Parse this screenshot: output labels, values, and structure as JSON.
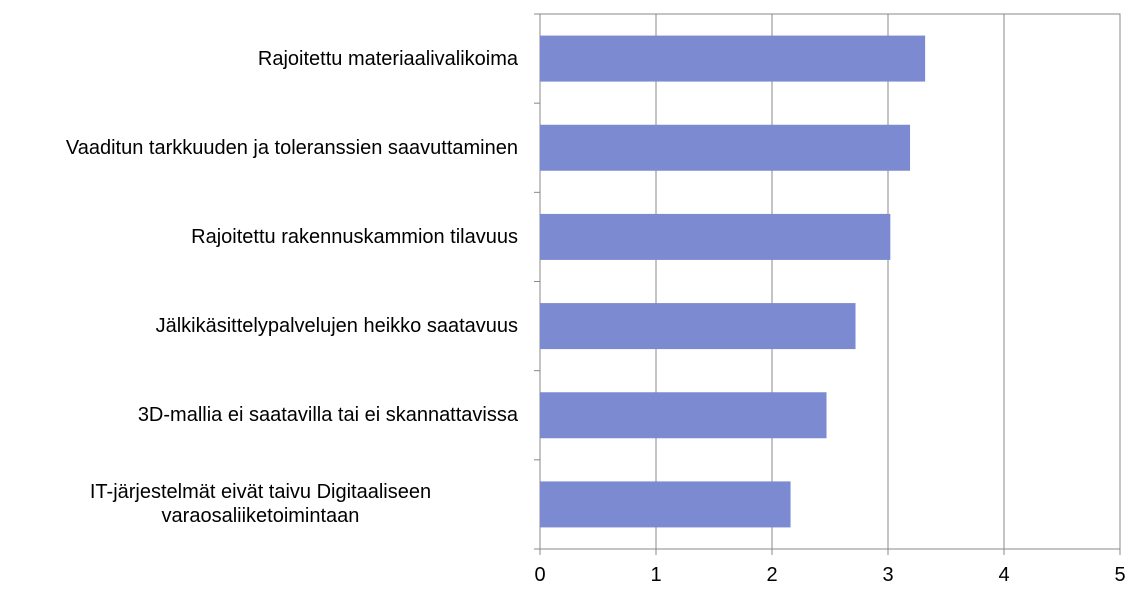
{
  "chart_data": {
    "type": "hbar",
    "categories": [
      "Rajoitettu materiaalivalikoima",
      "Vaaditun tarkkuuden ja toleranssien saavuttaminen",
      "Rajoitettu rakennuskammion tilavuus",
      "Jälkikäsittelypalvelujen heikko saatavuus",
      "3D-mallia ei saatavilla tai ei skannattavissa",
      "IT-järjestelmät eivät taivu Digitaaliseen varaosaliiketoimintaan"
    ],
    "values": [
      3.32,
      3.19,
      3.02,
      2.72,
      2.47,
      2.16
    ],
    "color": "#7b8ad1",
    "xlim": [
      0,
      5
    ],
    "xticks": [
      0,
      1,
      2,
      3,
      4,
      5
    ],
    "grid": true
  }
}
